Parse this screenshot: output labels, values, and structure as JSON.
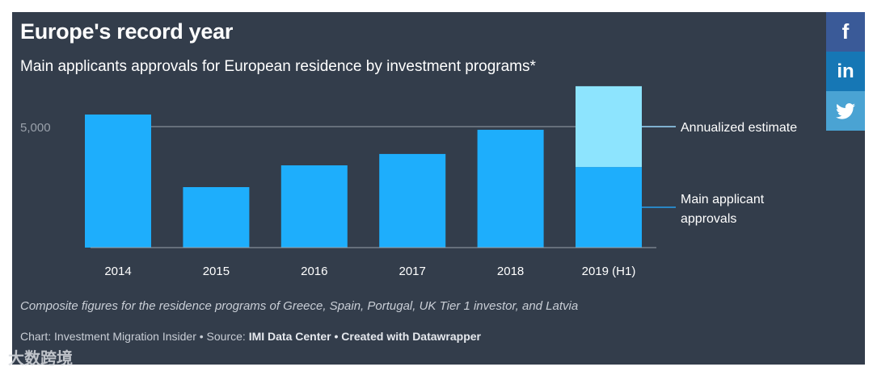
{
  "title": "Europe's record year",
  "subtitle": "Main applicants approvals for European residence by investment programs*",
  "note": "Composite figures for the residence programs of Greece, Spain, Portugal, UK Tier 1 investor, and Latvia",
  "credit": {
    "prefix": "Chart: Investment Migration Insider • Source: ",
    "source": "IMI Data Center",
    "sep": " • ",
    "created": "Created with Datawrapper"
  },
  "watermark": "大数跨境",
  "social": {
    "facebook": "f",
    "linkedin": "in",
    "twitter": "twitter-icon"
  },
  "colors": {
    "background": "#333d4b",
    "bar": "#1eaefc",
    "estimate": "#8de4fe"
  },
  "chart_data": {
    "type": "bar",
    "categories": [
      "2014",
      "2015",
      "2016",
      "2017",
      "2018",
      "2019 (H1)"
    ],
    "series": [
      {
        "name": "Main applicant approvals",
        "values": [
          5500,
          2500,
          3400,
          3870,
          4870,
          3330
        ]
      },
      {
        "name": "Annualized estimate",
        "values": [
          0,
          0,
          0,
          0,
          0,
          3340
        ]
      }
    ],
    "yticks": [
      5000
    ],
    "ytick_labels": [
      "5,000"
    ],
    "ylim": [
      0,
      7000
    ],
    "legend": [
      "Annualized estimate",
      "Main applicant approvals"
    ],
    "legend_lines": [
      [
        "Main applicant"
      ],
      [
        "approvals"
      ]
    ],
    "legend_placement": "right"
  }
}
